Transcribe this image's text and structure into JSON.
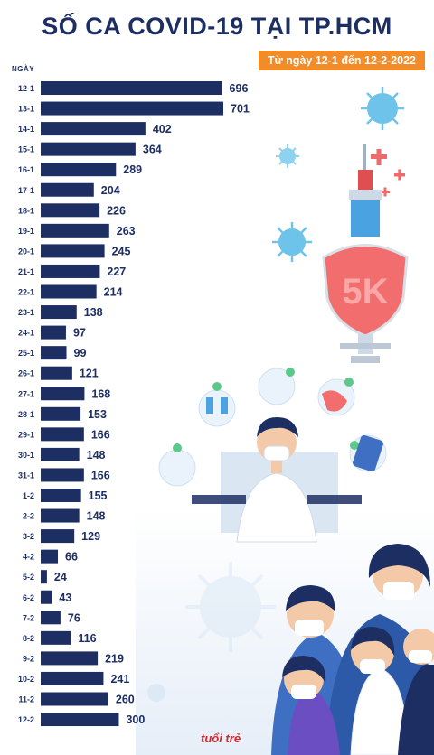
{
  "header": {
    "title": "SỐ CA COVID-19 TẠI TP.HCM",
    "subtitle": "Từ ngày 12-1 đến 12-2-2022"
  },
  "chart_data": {
    "type": "bar",
    "orientation": "horizontal",
    "title": "SỐ CA COVID-19 TẠI TP.HCM",
    "subtitle": "Từ ngày 12-1 đến 12-2-2022",
    "ylabel": "NGÀY",
    "categories": [
      "12-1",
      "13-1",
      "14-1",
      "15-1",
      "16-1",
      "17-1",
      "18-1",
      "19-1",
      "20-1",
      "21-1",
      "22-1",
      "23-1",
      "24-1",
      "25-1",
      "26-1",
      "27-1",
      "28-1",
      "29-1",
      "30-1",
      "31-1",
      "1-2",
      "2-2",
      "3-2",
      "4-2",
      "5-2",
      "6-2",
      "7-2",
      "8-2",
      "9-2",
      "10-2",
      "11-2",
      "12-2"
    ],
    "values": [
      696,
      701,
      402,
      364,
      289,
      204,
      226,
      263,
      245,
      227,
      214,
      138,
      97,
      99,
      121,
      168,
      153,
      166,
      148,
      166,
      155,
      148,
      129,
      66,
      24,
      43,
      76,
      116,
      219,
      241,
      260,
      300
    ],
    "xlim": [
      0,
      701
    ],
    "grid": false,
    "bar_color": "#1d2e63"
  },
  "decor": {
    "shield_text": "5K",
    "logo_text": "tuổi trẻ"
  }
}
